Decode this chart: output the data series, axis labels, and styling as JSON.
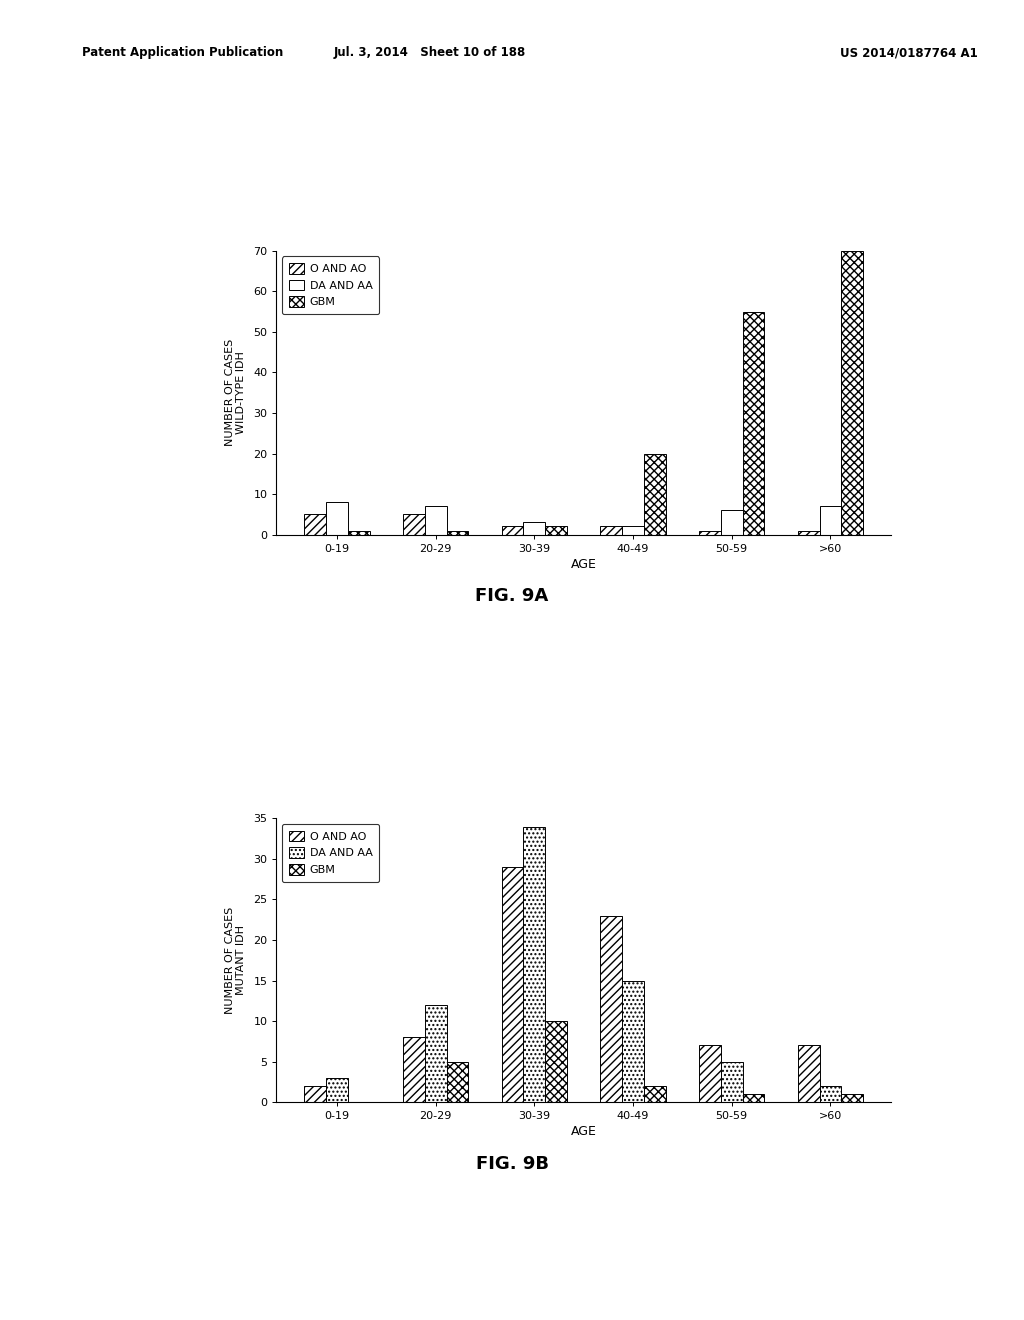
{
  "fig9a": {
    "title": "FIG. 9A",
    "ylabel_line1": "NUMBER OF CASES",
    "ylabel_line2": "WILD-TYPE IDH",
    "xlabel": "AGE",
    "categories": [
      "0-19",
      "20-29",
      "30-39",
      "40-49",
      "50-59",
      ">60"
    ],
    "O_AO": [
      5,
      5,
      2,
      2,
      1,
      1
    ],
    "DA_AA": [
      8,
      7,
      3,
      2,
      6,
      7
    ],
    "GBM": [
      1,
      1,
      2,
      20,
      55,
      70
    ],
    "ylim": [
      0,
      70
    ],
    "yticks": [
      0,
      10,
      20,
      30,
      40,
      50,
      60,
      70
    ]
  },
  "fig9b": {
    "title": "FIG. 9B",
    "ylabel_line1": "NUMBER OF CASES",
    "ylabel_line2": "MUTANT IDH",
    "xlabel": "AGE",
    "categories": [
      "0-19",
      "20-29",
      "30-39",
      "40-49",
      "50-59",
      ">60"
    ],
    "O_AO": [
      2,
      8,
      29,
      23,
      7,
      7
    ],
    "DA_AA": [
      3,
      12,
      34,
      15,
      5,
      2
    ],
    "GBM": [
      0,
      5,
      10,
      2,
      1,
      1
    ],
    "ylim": [
      0,
      35
    ],
    "yticks": [
      0,
      5,
      10,
      15,
      20,
      25,
      30,
      35
    ]
  },
  "legend_labels": [
    "O AND AO",
    "DA AND AA",
    "GBM"
  ],
  "bar_width": 0.22,
  "background_color": "#ffffff",
  "header_left": "Patent Application Publication",
  "header_mid": "Jul. 3, 2014   Sheet 10 of 188",
  "header_right": "US 2014/0187764 A1"
}
